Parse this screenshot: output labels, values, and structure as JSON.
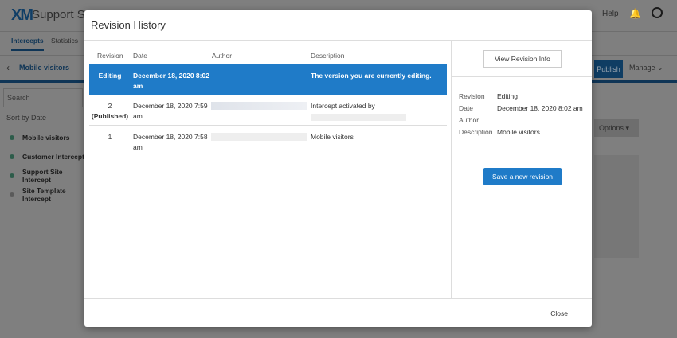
{
  "app": {
    "logo": "XM",
    "title": "Support S",
    "help": "Help",
    "tabs": [
      "Intercepts",
      "Statistics"
    ],
    "back_label": "Mobile visitors",
    "publish": "Publish",
    "manage": "Manage ⌄",
    "search_placeholder": "Search",
    "sort": "Sort by Date",
    "options": "Options ▾",
    "items": [
      "Mobile visitors",
      "Customer Intercept",
      "Support Site Intercept",
      "Site Template Intercept"
    ]
  },
  "modal": {
    "title": "Revision History",
    "columns": [
      "Revision",
      "Date",
      "Author",
      "Description"
    ],
    "rows": [
      {
        "revision": "Editing",
        "status": "",
        "date": "December 18, 2020 8:02 am",
        "description": "The version you are currently editing.",
        "selected": true
      },
      {
        "revision": "2",
        "status": "(Published)",
        "date": "December 18, 2020 7:59 am",
        "description": "Intercept activated by"
      },
      {
        "revision": "1",
        "status": "",
        "date": "December 18, 2020 7:58 am",
        "description": "Mobile visitors"
      }
    ],
    "view_info": "View Revision Info",
    "info": {
      "revision_label": "Revision",
      "revision": "Editing",
      "date_label": "Date",
      "date": "December 18, 2020 8:02 am",
      "author_label": "Author",
      "author": "",
      "description_label": "Description",
      "description": "Mobile visitors"
    },
    "save": "Save a new revision",
    "close": "Close"
  },
  "colors": {
    "accent": "#1f7bc8"
  }
}
